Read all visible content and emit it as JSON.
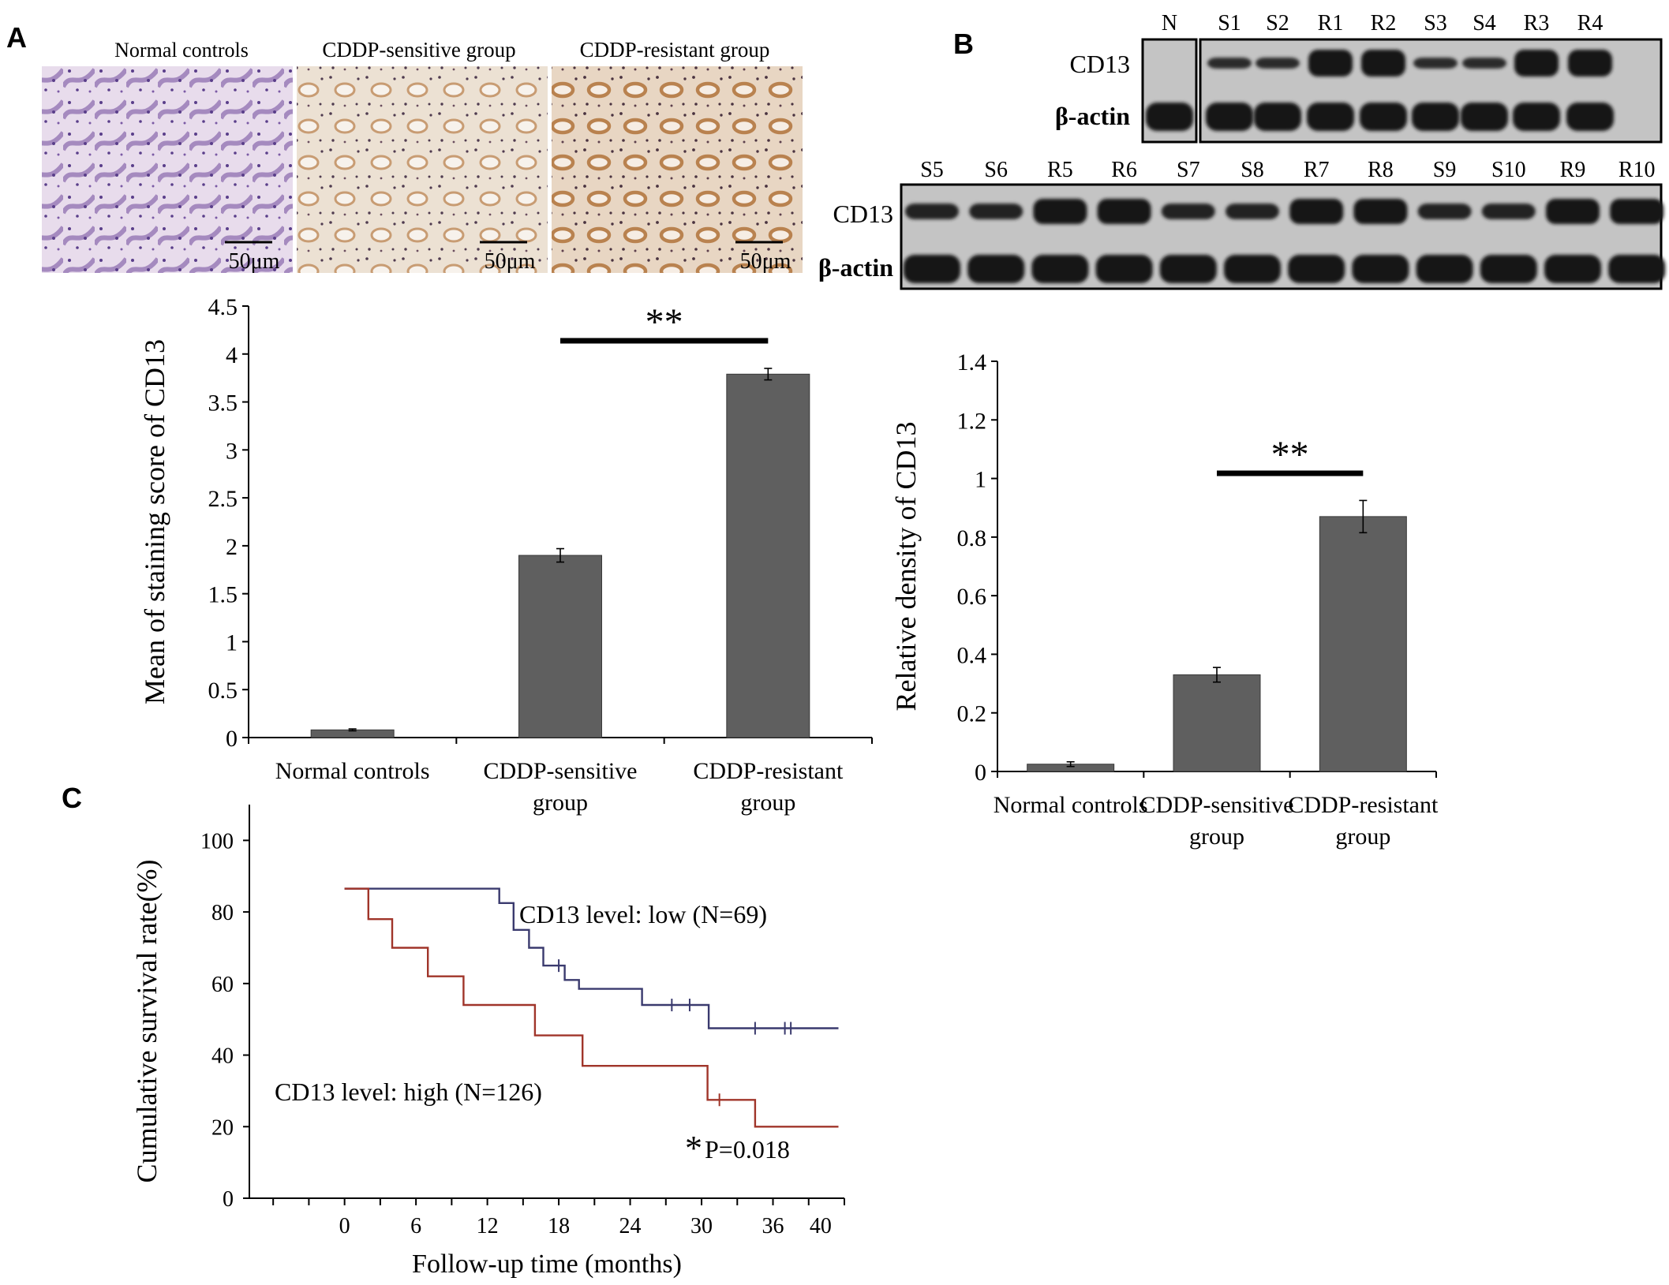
{
  "panel_letters": {
    "a": "A",
    "b": "B",
    "c": "C"
  },
  "histology": {
    "titles": [
      "Normal controls",
      "CDDP-sensitive group",
      "CDDP-resistant group"
    ],
    "scale_labels": [
      "50μm",
      "50μm",
      "50μm"
    ]
  },
  "western": {
    "row1_lanes": [
      "N",
      "S1",
      "S2",
      "R1",
      "R2",
      "S3",
      "S4",
      "R3",
      "R4"
    ],
    "row2_lanes": [
      "S5",
      "S6",
      "R5",
      "R6",
      "S7",
      "S8",
      "R7",
      "R8",
      "S9",
      "S10",
      "R9",
      "R10"
    ],
    "target_label": "CD13",
    "control_label": "β-actin"
  },
  "km_annotations": {
    "low_label": "CD13 level: low (N=69)",
    "high_label": "CD13 level: high (N=126)",
    "p_star": "*",
    "p_value": "P=0.018"
  },
  "chart_data": [
    {
      "type": "bar",
      "panel": "A",
      "categories": [
        [
          "Normal controls"
        ],
        [
          "CDDP-sensitive",
          "group"
        ],
        [
          "CDDP-resistant",
          "group"
        ]
      ],
      "values": [
        0.08,
        1.9,
        3.79
      ],
      "errors": [
        0.01,
        0.07,
        0.06
      ],
      "ylabel": "Mean of staining score of CD13",
      "ylim": [
        0,
        4.5
      ],
      "yticks": [
        "0",
        "0.5",
        "1",
        "1.5",
        "2",
        "2.5",
        "3",
        "3.5",
        "4",
        "4.5"
      ],
      "significance": "**",
      "bar_color": "#5f5f5f"
    },
    {
      "type": "bar",
      "panel": "B",
      "categories": [
        [
          "Normal controls"
        ],
        [
          "CDDP-sensitive",
          "group"
        ],
        [
          "CDDP-resistant",
          "group"
        ]
      ],
      "values": [
        0.025,
        0.33,
        0.87
      ],
      "errors": [
        0.008,
        0.025,
        0.055
      ],
      "ylabel": "Relative density of CD13",
      "ylim": [
        0,
        1.4
      ],
      "yticks": [
        "0",
        "0.2",
        "0.4",
        "0.6",
        "0.8",
        "1",
        "1.2",
        "1.4"
      ],
      "significance": "**",
      "bar_color": "#5f5f5f"
    },
    {
      "type": "line",
      "panel": "C",
      "ylabel": "Cumulative survival rate(%)",
      "xlabel": "Follow-up time (months)",
      "xlim": [
        -8,
        42
      ],
      "ylim": [
        0,
        110
      ],
      "xticks": [
        "0",
        "6",
        "12",
        "18",
        "24",
        "30",
        "36",
        "40"
      ],
      "yticks": [
        "0",
        "20",
        "40",
        "60",
        "80",
        "100"
      ],
      "series": [
        {
          "name": "CD13 level: low (N=69)",
          "color": "#3a3a6e",
          "steps": [
            [
              0,
              86.5
            ],
            [
              13,
              86.5
            ],
            [
              13,
              82.5
            ],
            [
              14.2,
              82.5
            ],
            [
              14.2,
              75
            ],
            [
              15.5,
              75
            ],
            [
              15.5,
              70
            ],
            [
              16.7,
              70
            ],
            [
              16.7,
              65
            ],
            [
              18.5,
              65
            ],
            [
              18.5,
              61
            ],
            [
              19.7,
              61
            ],
            [
              19.7,
              58.5
            ],
            [
              25,
              58.5
            ],
            [
              25,
              54
            ],
            [
              30.6,
              54
            ],
            [
              30.6,
              47.5
            ],
            [
              41.5,
              47.5
            ]
          ],
          "censor": [
            [
              18,
              65
            ],
            [
              27.5,
              54
            ],
            [
              29,
              54
            ],
            [
              34.5,
              47.5
            ],
            [
              37,
              47.5
            ],
            [
              37.5,
              47.5
            ]
          ]
        },
        {
          "name": "CD13 level: high (N=126)",
          "color": "#a0352a",
          "steps": [
            [
              0,
              86.5
            ],
            [
              2,
              86.5
            ],
            [
              2,
              78
            ],
            [
              4,
              78
            ],
            [
              4,
              70
            ],
            [
              7,
              70
            ],
            [
              7,
              62
            ],
            [
              10,
              62
            ],
            [
              10,
              54
            ],
            [
              16,
              54
            ],
            [
              16,
              45.5
            ],
            [
              20,
              45.5
            ],
            [
              20,
              37
            ],
            [
              30.5,
              37
            ],
            [
              30.5,
              27.5
            ],
            [
              34.5,
              27.5
            ],
            [
              34.5,
              20
            ],
            [
              41.5,
              20
            ]
          ],
          "censor": [
            [
              31.5,
              27.5
            ]
          ]
        }
      ]
    }
  ]
}
